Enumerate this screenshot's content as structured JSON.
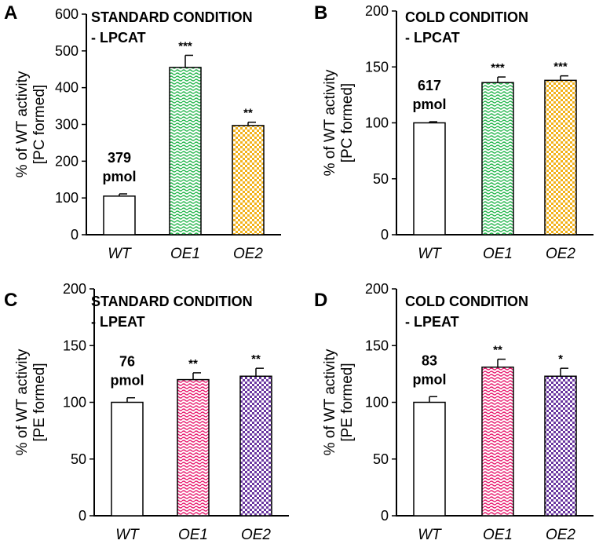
{
  "colors": {
    "green": "#22b54a",
    "gold": "#f2b21b",
    "pink": "#e8186d",
    "purple": "#6a36a0",
    "axis": "#000000"
  },
  "chart_data": [
    {
      "panel": "A",
      "type": "bar",
      "title_lines": [
        "STANDARD CONDITION",
        "- LPCAT"
      ],
      "ylabel_lines": [
        "% of WT activity",
        "[PC formed]"
      ],
      "categories": [
        "WT",
        "OE1",
        "OE2"
      ],
      "values": [
        105,
        455,
        297
      ],
      "errors": [
        6,
        33,
        9
      ],
      "significance": [
        "",
        "***",
        "**"
      ],
      "bar_colors": [
        "white",
        "green",
        "gold"
      ],
      "baseline_label": [
        "379",
        "pmol"
      ],
      "ylim": [
        0,
        600
      ],
      "yticks": [
        0,
        100,
        200,
        300,
        400,
        500,
        600
      ]
    },
    {
      "panel": "B",
      "type": "bar",
      "title_lines": [
        "COLD CONDITION",
        "- LPCAT"
      ],
      "ylabel_lines": [
        "% of WT activity",
        "[PC formed]"
      ],
      "categories": [
        "WT",
        "OE1",
        "OE2"
      ],
      "values": [
        100,
        136,
        138
      ],
      "errors": [
        1,
        5,
        4
      ],
      "significance": [
        "",
        "***",
        "***"
      ],
      "bar_colors": [
        "white",
        "green",
        "gold"
      ],
      "baseline_label": [
        "617",
        "pmol"
      ],
      "ylim": [
        0,
        200
      ],
      "yticks": [
        0,
        50,
        100,
        150,
        200
      ]
    },
    {
      "panel": "C",
      "type": "bar",
      "title_lines": [
        "STANDARD CONDITION",
        "- LPEAT"
      ],
      "ylabel_lines": [
        "% of WT activity",
        "[PE formed]"
      ],
      "categories": [
        "WT",
        "OE1",
        "OE2"
      ],
      "values": [
        100,
        120,
        123
      ],
      "errors": [
        4,
        6,
        7
      ],
      "significance": [
        "",
        "**",
        "**"
      ],
      "bar_colors": [
        "white",
        "pink",
        "purple"
      ],
      "baseline_label": [
        "76",
        "pmol"
      ],
      "ylim": [
        0,
        200
      ],
      "yticks": [
        0,
        50,
        100,
        150,
        200
      ]
    },
    {
      "panel": "D",
      "type": "bar",
      "title_lines": [
        "COLD CONDITION",
        "- LPEAT"
      ],
      "ylabel_lines": [
        "% of WT activity",
        "[PE formed]"
      ],
      "categories": [
        "WT",
        "OE1",
        "OE2"
      ],
      "values": [
        100,
        131,
        123
      ],
      "errors": [
        5,
        7,
        7
      ],
      "significance": [
        "",
        "**",
        "*"
      ],
      "bar_colors": [
        "white",
        "pink",
        "purple"
      ],
      "baseline_label": [
        "83",
        "pmol"
      ],
      "ylim": [
        0,
        200
      ],
      "yticks": [
        0,
        50,
        100,
        150,
        200
      ]
    }
  ]
}
